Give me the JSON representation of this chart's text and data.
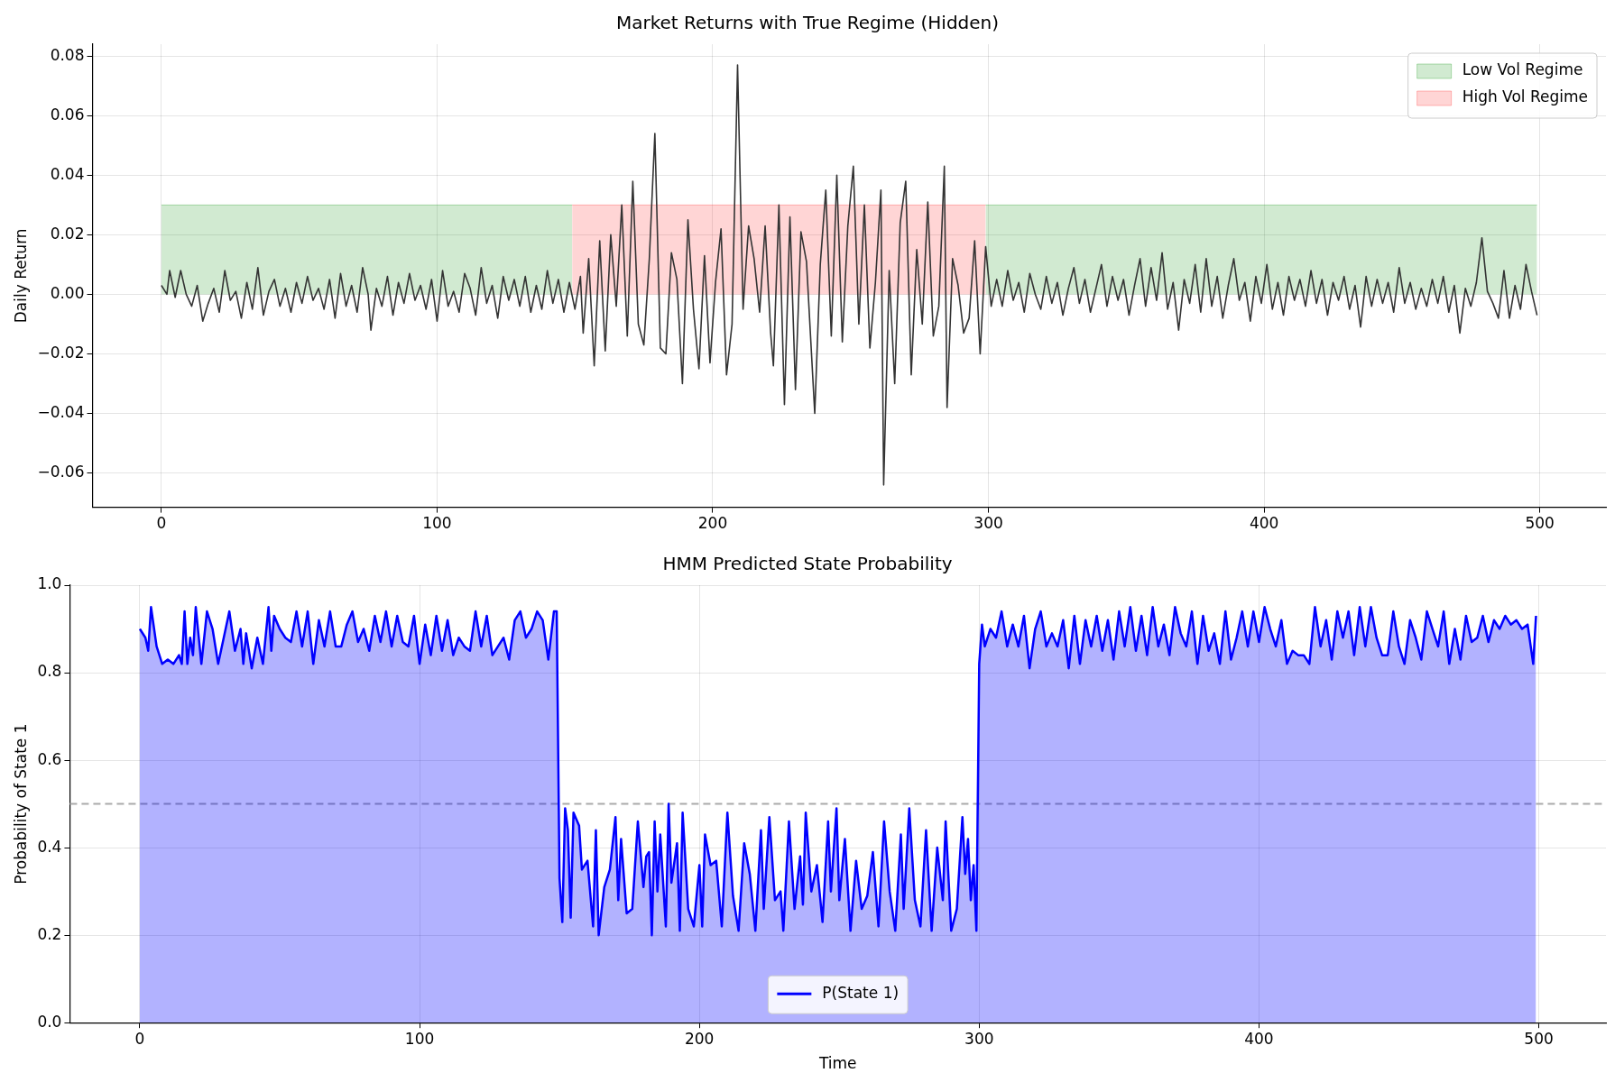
{
  "chart_data": [
    {
      "type": "line",
      "title": "Market Returns with True Regime (Hidden)",
      "ylabel": "Daily Return",
      "xlim": [
        -25,
        524
      ],
      "xticks": [
        0,
        100,
        200,
        300,
        400,
        500
      ],
      "ylim": [
        -0.0715,
        0.084
      ],
      "yticks": [
        {
          "value": -0.06,
          "label": "−0.06"
        },
        {
          "value": -0.04,
          "label": "−0.04"
        },
        {
          "value": -0.02,
          "label": "−0.02"
        },
        {
          "value": 0,
          "label": "0.00"
        },
        {
          "value": 0.02,
          "label": "0.02"
        },
        {
          "value": 0.04,
          "label": "0.04"
        },
        {
          "value": 0.06,
          "label": "0.06"
        },
        {
          "value": 0.08,
          "label": "0.08"
        }
      ],
      "grid": true,
      "legend": "top right",
      "series": [
        {
          "name": "Low Vol Regime",
          "type": "area",
          "color": "#2ca02c",
          "x": [
            0,
            149,
            224,
            299,
            499
          ],
          "values": [
            0.03,
            0.03,
            null,
            0.03,
            0.03
          ]
        },
        {
          "name": "High Vol Regime",
          "type": "area",
          "color": "#ff4040",
          "x": [
            149,
            299
          ],
          "values": [
            0.03,
            0.03
          ]
        },
        {
          "type": "line",
          "color": "#333333",
          "x": [
            0,
            2,
            3,
            5,
            7,
            9,
            11,
            13,
            15,
            17,
            19,
            21,
            23,
            25,
            27,
            29,
            31,
            33,
            35,
            37,
            39,
            41,
            43,
            45,
            47,
            49,
            51,
            53,
            55,
            57,
            59,
            61,
            63,
            65,
            67,
            69,
            71,
            73,
            75,
            76,
            78,
            80,
            82,
            84,
            86,
            88,
            90,
            92,
            94,
            96,
            98,
            100,
            102,
            104,
            106,
            108,
            110,
            112,
            114,
            116,
            118,
            120,
            122,
            124,
            126,
            128,
            130,
            132,
            134,
            136,
            138,
            140,
            142,
            144,
            146,
            148,
            150,
            152,
            153,
            155,
            157,
            159,
            161,
            163,
            165,
            167,
            169,
            171,
            173,
            175,
            177,
            179,
            181,
            183,
            185,
            187,
            189,
            191,
            193,
            195,
            197,
            199,
            201,
            203,
            205,
            207,
            209,
            211,
            213,
            215,
            217,
            219,
            221,
            222,
            224,
            226,
            228,
            230,
            232,
            234,
            237,
            239,
            241,
            243,
            245,
            247,
            249,
            251,
            253,
            255,
            257,
            259,
            261,
            262,
            264,
            266,
            268,
            270,
            272,
            274,
            276,
            278,
            280,
            282,
            284,
            285,
            287,
            289,
            291,
            293,
            295,
            297,
            299,
            301,
            303,
            305,
            307,
            309,
            311,
            313,
            315,
            317,
            319,
            321,
            323,
            325,
            327,
            329,
            331,
            333,
            335,
            337,
            339,
            341,
            343,
            345,
            347,
            349,
            351,
            353,
            355,
            357,
            359,
            361,
            363,
            365,
            367,
            369,
            371,
            373,
            375,
            377,
            379,
            381,
            383,
            385,
            387,
            389,
            391,
            393,
            395,
            397,
            399,
            401,
            403,
            405,
            407,
            409,
            411,
            413,
            415,
            417,
            419,
            421,
            423,
            425,
            427,
            429,
            431,
            433,
            435,
            437,
            439,
            441,
            443,
            445,
            447,
            449,
            451,
            453,
            455,
            457,
            459,
            461,
            463,
            465,
            467,
            469,
            471,
            473,
            475,
            477,
            479,
            481,
            483,
            485,
            487,
            489,
            491,
            493,
            495,
            497,
            499
          ],
          "values": [
            0.003,
            0.0,
            0.008,
            -0.001,
            0.008,
            0.0,
            -0.004,
            0.003,
            -0.009,
            -0.003,
            0.002,
            -0.006,
            0.008,
            -0.002,
            0.001,
            -0.008,
            0.004,
            -0.005,
            0.009,
            -0.007,
            0.001,
            0.005,
            -0.004,
            0.002,
            -0.006,
            0.004,
            -0.003,
            0.006,
            -0.002,
            0.002,
            -0.005,
            0.005,
            -0.008,
            0.007,
            -0.004,
            0.003,
            -0.006,
            0.009,
            0.0,
            -0.012,
            0.002,
            -0.004,
            0.006,
            -0.007,
            0.004,
            -0.003,
            0.007,
            -0.002,
            0.003,
            -0.005,
            0.005,
            -0.009,
            0.008,
            -0.004,
            0.001,
            -0.006,
            0.007,
            0.002,
            -0.007,
            0.009,
            -0.003,
            0.003,
            -0.008,
            0.006,
            -0.002,
            0.005,
            -0.004,
            0.006,
            -0.006,
            0.003,
            -0.005,
            0.008,
            -0.003,
            0.005,
            -0.006,
            0.004,
            -0.005,
            0.006,
            -0.013,
            0.012,
            -0.024,
            0.018,
            -0.019,
            0.02,
            -0.004,
            0.03,
            -0.014,
            0.038,
            -0.01,
            -0.017,
            0.012,
            0.054,
            -0.018,
            -0.02,
            0.014,
            0.005,
            -0.03,
            0.025,
            -0.005,
            -0.025,
            0.013,
            -0.023,
            0.004,
            0.022,
            -0.027,
            -0.01,
            0.077,
            -0.005,
            0.023,
            0.012,
            -0.006,
            0.023,
            -0.013,
            -0.024,
            0.03,
            -0.037,
            0.026,
            -0.032,
            0.021,
            0.011,
            -0.04,
            0.01,
            0.035,
            -0.014,
            0.04,
            -0.016,
            0.023,
            0.043,
            -0.01,
            0.03,
            -0.018,
            0.004,
            0.035,
            -0.064,
            0.008,
            -0.03,
            0.024,
            0.038,
            -0.027,
            0.015,
            -0.01,
            0.031,
            -0.014,
            -0.004,
            0.043,
            -0.038,
            0.012,
            0.003,
            -0.013,
            -0.008,
            0.018,
            -0.02,
            0.016,
            -0.004,
            0.005,
            -0.004,
            0.008,
            -0.002,
            0.004,
            -0.006,
            0.007,
            0.0,
            -0.005,
            0.006,
            -0.003,
            0.004,
            -0.007,
            0.002,
            0.009,
            -0.003,
            0.005,
            -0.006,
            0.002,
            0.01,
            -0.004,
            0.006,
            -0.002,
            0.005,
            -0.007,
            0.003,
            0.012,
            -0.004,
            0.009,
            -0.002,
            0.014,
            -0.005,
            0.004,
            -0.012,
            0.005,
            -0.003,
            0.01,
            -0.006,
            0.012,
            -0.004,
            0.006,
            -0.008,
            0.003,
            0.012,
            -0.002,
            0.004,
            -0.009,
            0.006,
            -0.003,
            0.01,
            -0.005,
            0.004,
            -0.007,
            0.006,
            -0.002,
            0.005,
            -0.004,
            0.008,
            -0.003,
            0.005,
            -0.007,
            0.004,
            -0.002,
            0.006,
            -0.005,
            0.003,
            -0.011,
            0.006,
            -0.004,
            0.005,
            -0.003,
            0.004,
            -0.006,
            0.009,
            -0.003,
            0.004,
            -0.005,
            0.002,
            -0.004,
            0.005,
            -0.003,
            0.006,
            -0.006,
            0.003,
            -0.013,
            0.002,
            -0.004,
            0.004,
            0.019,
            0.001,
            -0.003,
            -0.008,
            0.008,
            -0.008,
            0.003,
            -0.005,
            0.01,
            0.001,
            -0.007
          ]
        }
      ]
    },
    {
      "type": "area",
      "title": "HMM Predicted State Probability",
      "xlabel": "Time",
      "ylabel": "Probability of State 1",
      "xlim": [
        -25,
        524
      ],
      "xticks": [
        0,
        100,
        200,
        300,
        400,
        500
      ],
      "ylim": [
        0,
        1
      ],
      "yticks": [
        {
          "value": 0,
          "label": "0.0"
        },
        {
          "value": 0.2,
          "label": "0.2"
        },
        {
          "value": 0.4,
          "label": "0.4"
        },
        {
          "value": 0.6,
          "label": "0.6"
        },
        {
          "value": 0.8,
          "label": "0.8"
        },
        {
          "value": 1,
          "label": "1.0"
        }
      ],
      "grid": true,
      "legend": "bottom",
      "ref_lines": [
        {
          "axis": "y",
          "value": 0.5,
          "color": "#aaaaaa",
          "line_style": "dashed"
        }
      ],
      "series": [
        {
          "name": "P(State 1)",
          "type": "area",
          "color": "#0000ff",
          "x": [
            0,
            2,
            3,
            4,
            6,
            8,
            10,
            12,
            14,
            15,
            16,
            17,
            18,
            19,
            20,
            22,
            24,
            26,
            28,
            30,
            32,
            34,
            36,
            37,
            38,
            40,
            42,
            44,
            46,
            47,
            48,
            50,
            52,
            54,
            56,
            58,
            60,
            62,
            64,
            66,
            68,
            70,
            72,
            74,
            76,
            78,
            80,
            82,
            84,
            86,
            88,
            90,
            92,
            94,
            96,
            98,
            100,
            102,
            104,
            106,
            108,
            110,
            112,
            114,
            116,
            118,
            120,
            122,
            124,
            126,
            128,
            130,
            132,
            134,
            136,
            138,
            140,
            142,
            144,
            146,
            148,
            149,
            150,
            151,
            152,
            153,
            154,
            155,
            157,
            158,
            160,
            162,
            163,
            164,
            166,
            168,
            170,
            171,
            172,
            174,
            176,
            178,
            180,
            181,
            182,
            183,
            184,
            185,
            186,
            188,
            189,
            190,
            192,
            193,
            194,
            196,
            198,
            200,
            201,
            202,
            204,
            206,
            208,
            210,
            212,
            214,
            216,
            218,
            220,
            222,
            223,
            225,
            227,
            229,
            230,
            232,
            234,
            236,
            237,
            238,
            240,
            242,
            244,
            246,
            247,
            249,
            250,
            252,
            254,
            256,
            258,
            260,
            262,
            264,
            266,
            268,
            270,
            272,
            273,
            275,
            277,
            279,
            281,
            283,
            285,
            287,
            288,
            290,
            292,
            294,
            295,
            296,
            297,
            298,
            299,
            300,
            301,
            302,
            304,
            306,
            308,
            310,
            312,
            314,
            316,
            318,
            320,
            322,
            324,
            326,
            328,
            330,
            332,
            334,
            336,
            338,
            340,
            342,
            344,
            346,
            348,
            350,
            352,
            354,
            356,
            358,
            360,
            362,
            364,
            366,
            368,
            370,
            372,
            374,
            376,
            378,
            380,
            382,
            384,
            386,
            388,
            390,
            392,
            394,
            396,
            398,
            400,
            402,
            404,
            406,
            408,
            410,
            412,
            414,
            416,
            418,
            420,
            422,
            424,
            426,
            428,
            430,
            432,
            434,
            436,
            438,
            440,
            442,
            444,
            446,
            448,
            450,
            452,
            454,
            456,
            458,
            460,
            462,
            464,
            466,
            468,
            470,
            472,
            474,
            476,
            478,
            480,
            482,
            484,
            486,
            488,
            490,
            492,
            494,
            496,
            498,
            499
          ],
          "values": [
            0.9,
            0.88,
            0.85,
            0.95,
            0.86,
            0.82,
            0.83,
            0.82,
            0.84,
            0.82,
            0.94,
            0.82,
            0.88,
            0.84,
            0.95,
            0.82,
            0.94,
            0.9,
            0.82,
            0.88,
            0.94,
            0.85,
            0.9,
            0.82,
            0.89,
            0.81,
            0.88,
            0.82,
            0.95,
            0.85,
            0.93,
            0.9,
            0.88,
            0.87,
            0.94,
            0.86,
            0.94,
            0.82,
            0.92,
            0.86,
            0.94,
            0.86,
            0.86,
            0.91,
            0.94,
            0.87,
            0.9,
            0.85,
            0.93,
            0.87,
            0.94,
            0.86,
            0.93,
            0.87,
            0.86,
            0.93,
            0.82,
            0.91,
            0.84,
            0.93,
            0.85,
            0.92,
            0.84,
            0.88,
            0.86,
            0.85,
            0.94,
            0.86,
            0.93,
            0.84,
            0.86,
            0.88,
            0.83,
            0.92,
            0.94,
            0.88,
            0.9,
            0.94,
            0.92,
            0.83,
            0.94,
            0.94,
            0.33,
            0.23,
            0.49,
            0.44,
            0.24,
            0.48,
            0.45,
            0.35,
            0.37,
            0.22,
            0.44,
            0.2,
            0.31,
            0.35,
            0.47,
            0.28,
            0.42,
            0.25,
            0.26,
            0.46,
            0.31,
            0.38,
            0.39,
            0.2,
            0.46,
            0.3,
            0.43,
            0.22,
            0.5,
            0.32,
            0.41,
            0.21,
            0.48,
            0.26,
            0.22,
            0.36,
            0.22,
            0.43,
            0.36,
            0.37,
            0.22,
            0.48,
            0.29,
            0.21,
            0.41,
            0.34,
            0.21,
            0.44,
            0.26,
            0.47,
            0.28,
            0.3,
            0.21,
            0.46,
            0.26,
            0.38,
            0.27,
            0.48,
            0.3,
            0.36,
            0.23,
            0.46,
            0.3,
            0.49,
            0.28,
            0.42,
            0.21,
            0.37,
            0.26,
            0.29,
            0.39,
            0.22,
            0.46,
            0.3,
            0.21,
            0.43,
            0.26,
            0.49,
            0.28,
            0.22,
            0.44,
            0.21,
            0.4,
            0.28,
            0.46,
            0.21,
            0.26,
            0.47,
            0.34,
            0.42,
            0.28,
            0.36,
            0.21,
            0.82,
            0.91,
            0.86,
            0.9,
            0.88,
            0.94,
            0.86,
            0.91,
            0.86,
            0.93,
            0.81,
            0.9,
            0.94,
            0.86,
            0.89,
            0.86,
            0.92,
            0.81,
            0.93,
            0.82,
            0.92,
            0.86,
            0.93,
            0.85,
            0.92,
            0.83,
            0.94,
            0.86,
            0.95,
            0.85,
            0.93,
            0.84,
            0.95,
            0.86,
            0.91,
            0.84,
            0.95,
            0.89,
            0.86,
            0.94,
            0.82,
            0.93,
            0.85,
            0.89,
            0.82,
            0.94,
            0.83,
            0.88,
            0.94,
            0.86,
            0.94,
            0.87,
            0.95,
            0.9,
            0.86,
            0.92,
            0.82,
            0.85,
            0.84,
            0.84,
            0.82,
            0.95,
            0.86,
            0.92,
            0.83,
            0.94,
            0.88,
            0.94,
            0.84,
            0.95,
            0.86,
            0.95,
            0.88,
            0.84,
            0.84,
            0.94,
            0.86,
            0.82,
            0.92,
            0.88,
            0.83,
            0.94,
            0.9,
            0.86,
            0.94,
            0.82,
            0.9,
            0.83,
            0.93,
            0.87,
            0.88,
            0.93,
            0.87,
            0.92,
            0.9,
            0.93,
            0.91,
            0.92,
            0.9,
            0.91,
            0.82,
            0.93
          ]
        }
      ]
    }
  ]
}
